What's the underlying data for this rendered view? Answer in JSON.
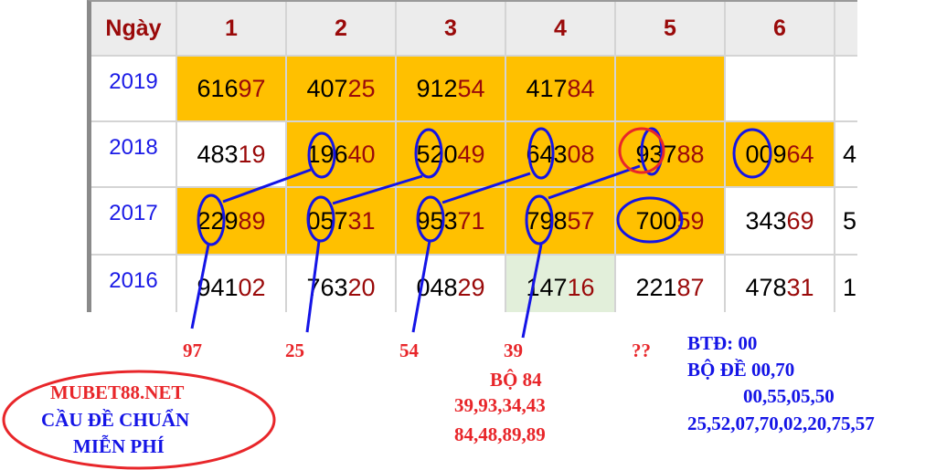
{
  "table": {
    "header": [
      "Ngày",
      "1",
      "2",
      "3",
      "4",
      "5",
      "6",
      ""
    ],
    "rows": [
      {
        "year": "2019",
        "cells": [
          {
            "v": "61697",
            "bg": "orange"
          },
          {
            "v": "40725",
            "bg": "orange"
          },
          {
            "v": "91254",
            "bg": "orange"
          },
          {
            "v": "41784",
            "bg": "orange"
          },
          {
            "v": "",
            "bg": "orange"
          },
          {
            "v": "",
            "bg": "white"
          },
          {
            "v": "",
            "bg": "white"
          }
        ]
      },
      {
        "year": "2018",
        "cells": [
          {
            "v": "48319",
            "bg": "white"
          },
          {
            "v": "19640",
            "bg": "orange"
          },
          {
            "v": "52049",
            "bg": "orange"
          },
          {
            "v": "64308",
            "bg": "orange"
          },
          {
            "v": "93788",
            "bg": "orange"
          },
          {
            "v": "00964",
            "bg": "orange"
          },
          {
            "v": "4",
            "bg": "white"
          }
        ]
      },
      {
        "year": "2017",
        "cells": [
          {
            "v": "22989",
            "bg": "orange"
          },
          {
            "v": "05731",
            "bg": "orange"
          },
          {
            "v": "95371",
            "bg": "orange"
          },
          {
            "v": "79857",
            "bg": "orange"
          },
          {
            "v": "70059",
            "bg": "orange"
          },
          {
            "v": "34369",
            "bg": "white"
          },
          {
            "v": "5",
            "bg": "white"
          }
        ]
      },
      {
        "year": "2016",
        "cells": [
          {
            "v": "94102",
            "bg": "white"
          },
          {
            "v": "76320",
            "bg": "white"
          },
          {
            "v": "04829",
            "bg": "white"
          },
          {
            "v": "14716",
            "bg": "green"
          },
          {
            "v": "22187",
            "bg": "white"
          },
          {
            "v": "47831",
            "bg": "white"
          },
          {
            "v": "1",
            "bg": "white"
          }
        ]
      }
    ]
  },
  "colors": {
    "highlight": "#ffc000",
    "green": "#e2efda",
    "header_text": "#9a0a0a",
    "year_text": "#1a1ae6",
    "annotation_blue": "#1414e6",
    "annotation_red": "#e8262a"
  },
  "annotations": {
    "results": [
      "97",
      "25",
      "54",
      "39",
      "??"
    ],
    "bo_84": {
      "title": "BỘ 84",
      "line1": "39,93,34,43",
      "line2": "84,48,89,89"
    },
    "right": {
      "btd": "BTĐ: 00",
      "bo_de": "BỘ ĐỀ 00,70",
      "line1": "00,55,05,50",
      "line2": "25,52,07,70,02,20,75,57"
    },
    "logo": {
      "site": "MUBET88.NET",
      "line1": "CẦU ĐỀ CHUẨN",
      "line2": "MIỄN PHÍ"
    }
  }
}
